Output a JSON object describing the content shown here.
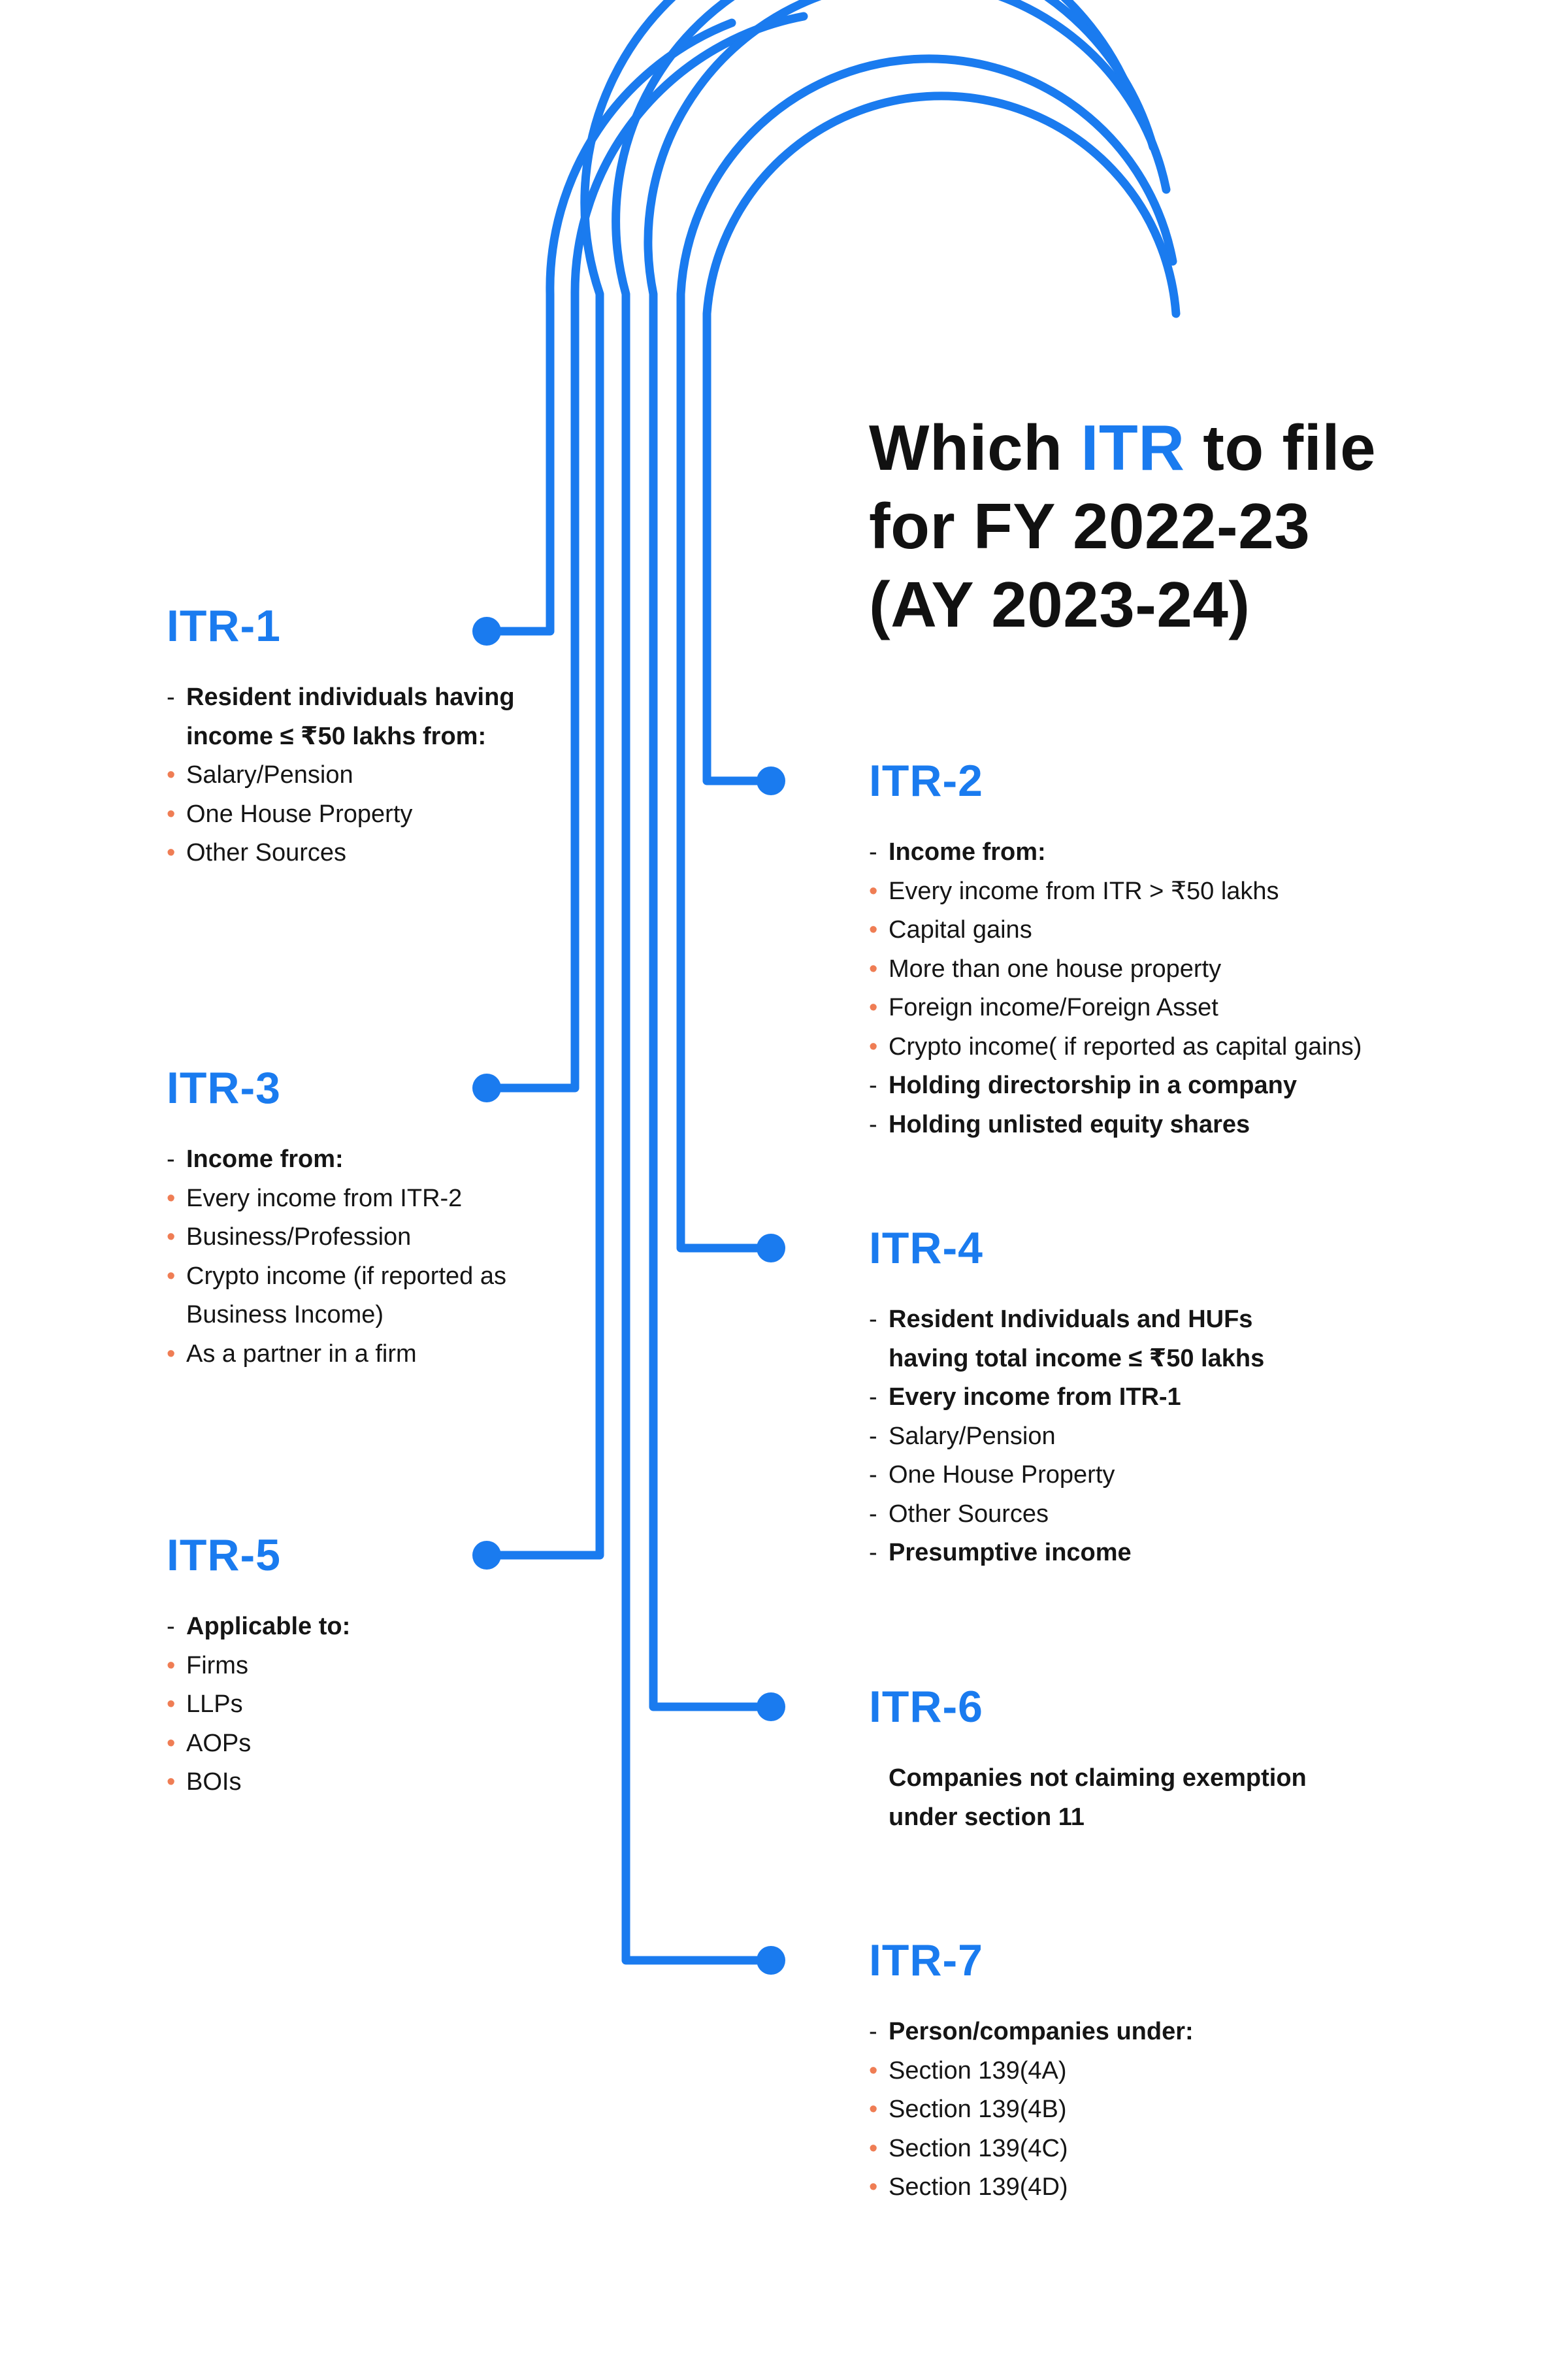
{
  "title": {
    "prefix": "Which ",
    "highlight": "ITR",
    "suffix": " to file",
    "line2": "for FY 2022-23",
    "line3": "(AY 2023-24)"
  },
  "colors": {
    "accent": "#1a7bef",
    "bullet": "#ef7d54",
    "text": "#151515"
  },
  "forms": [
    {
      "id": "itr-1",
      "heading": "ITR-1",
      "items": [
        {
          "marker": "dash",
          "text": "Resident individuals having income ≤ ₹50 lakhs from:",
          "bold": true
        },
        {
          "marker": "dot",
          "text": "Salary/Pension",
          "bold": false
        },
        {
          "marker": "dot",
          "text": "One House Property",
          "bold": false
        },
        {
          "marker": "dot",
          "text": "Other Sources",
          "bold": false
        }
      ]
    },
    {
      "id": "itr-2",
      "heading": "ITR-2",
      "items": [
        {
          "marker": "dash",
          "text": "Income from:",
          "bold": true
        },
        {
          "marker": "dot",
          "text": "Every income from ITR > ₹50 lakhs",
          "bold": false
        },
        {
          "marker": "dot",
          "text": "Capital gains",
          "bold": false
        },
        {
          "marker": "dot",
          "text": "More than one house property",
          "bold": false
        },
        {
          "marker": "dot",
          "text": "Foreign income/Foreign Asset",
          "bold": false
        },
        {
          "marker": "dot",
          "text": "Crypto income( if reported as capital gains)",
          "bold": false
        },
        {
          "marker": "dash",
          "text": "Holding directorship in a company",
          "bold": true
        },
        {
          "marker": "dash",
          "text": "Holding unlisted equity shares",
          "bold": true
        }
      ]
    },
    {
      "id": "itr-3",
      "heading": "ITR-3",
      "items": [
        {
          "marker": "dash",
          "text": "Income from:",
          "bold": true
        },
        {
          "marker": "dot",
          "text": "Every income from ITR-2",
          "bold": false
        },
        {
          "marker": "dot",
          "text": "Business/Profession",
          "bold": false
        },
        {
          "marker": "dot",
          "text": "Crypto income (if reported as Business Income)",
          "bold": false
        },
        {
          "marker": "dot",
          "text": "As a partner in a firm",
          "bold": false
        }
      ]
    },
    {
      "id": "itr-4",
      "heading": "ITR-4",
      "items": [
        {
          "marker": "dash",
          "text": "Resident Individuals and HUFs having total income ≤ ₹50 lakhs",
          "bold": true
        },
        {
          "marker": "dash",
          "text": "Every income from ITR-1",
          "bold": true
        },
        {
          "marker": "dash",
          "text": "Salary/Pension",
          "bold": false
        },
        {
          "marker": "dash",
          "text": "One House Property",
          "bold": false
        },
        {
          "marker": "dash",
          "text": "Other Sources",
          "bold": false
        },
        {
          "marker": "dash",
          "text": "Presumptive income",
          "bold": true
        }
      ]
    },
    {
      "id": "itr-5",
      "heading": "ITR-5",
      "items": [
        {
          "marker": "dash",
          "text": "Applicable to:",
          "bold": true
        },
        {
          "marker": "dot",
          "text": "Firms",
          "bold": false
        },
        {
          "marker": "dot",
          "text": "LLPs",
          "bold": false
        },
        {
          "marker": "dot",
          "text": "AOPs",
          "bold": false
        },
        {
          "marker": "dot",
          "text": "BOIs",
          "bold": false
        }
      ]
    },
    {
      "id": "itr-6",
      "heading": "ITR-6",
      "items": [
        {
          "marker": "none",
          "text": "Companies not claiming exemption under section 11",
          "bold": true
        }
      ]
    },
    {
      "id": "itr-7",
      "heading": "ITR-7",
      "items": [
        {
          "marker": "dash",
          "text": "Person/companies under:",
          "bold": true
        },
        {
          "marker": "dot",
          "text": "Section 139(4A)",
          "bold": false
        },
        {
          "marker": "dot",
          "text": "Section 139(4B)",
          "bold": false
        },
        {
          "marker": "dot",
          "text": "Section 139(4C)",
          "bold": false
        },
        {
          "marker": "dot",
          "text": "Section 139(4D)",
          "bold": false
        }
      ]
    }
  ]
}
